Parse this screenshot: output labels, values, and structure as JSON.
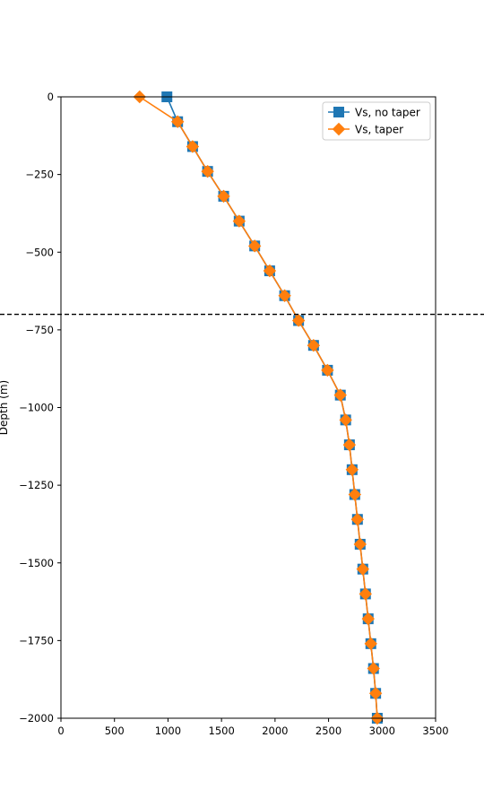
{
  "chart_data": {
    "type": "line",
    "ylabel": "Depth (m)",
    "xlabel": "",
    "title": "",
    "xlim": [
      0,
      3500
    ],
    "ylim": [
      -2000,
      0
    ],
    "x_ticks": [
      0,
      500,
      1000,
      1500,
      2000,
      2500,
      3000,
      3500
    ],
    "y_ticks": [
      0,
      -250,
      -500,
      -750,
      -1000,
      -1250,
      -1500,
      -1750,
      -2000
    ],
    "grid": false,
    "legend_position": "top-right",
    "hline": {
      "y": -700,
      "style": "dashed",
      "color": "#000000"
    },
    "series": [
      {
        "name": "Vs, no taper",
        "color": "#1f77b4",
        "marker": "square",
        "points": [
          [
            990,
            0
          ],
          [
            1090,
            -80
          ],
          [
            1230,
            -160
          ],
          [
            1370,
            -240
          ],
          [
            1520,
            -320
          ],
          [
            1665,
            -400
          ],
          [
            1810,
            -480
          ],
          [
            1950,
            -560
          ],
          [
            2090,
            -640
          ],
          [
            2220,
            -720
          ],
          [
            2360,
            -800
          ],
          [
            2490,
            -880
          ],
          [
            2610,
            -960
          ],
          [
            2660,
            -1040
          ],
          [
            2695,
            -1120
          ],
          [
            2720,
            -1200
          ],
          [
            2745,
            -1280
          ],
          [
            2770,
            -1360
          ],
          [
            2795,
            -1440
          ],
          [
            2820,
            -1520
          ],
          [
            2845,
            -1600
          ],
          [
            2870,
            -1680
          ],
          [
            2895,
            -1760
          ],
          [
            2920,
            -1840
          ],
          [
            2940,
            -1920
          ],
          [
            2955,
            -2000
          ]
        ]
      },
      {
        "name": "Vs, taper",
        "color": "#ff7f0e",
        "marker": "diamond",
        "points": [
          [
            735,
            0
          ],
          [
            1090,
            -80
          ],
          [
            1230,
            -160
          ],
          [
            1370,
            -240
          ],
          [
            1520,
            -320
          ],
          [
            1665,
            -400
          ],
          [
            1810,
            -480
          ],
          [
            1950,
            -560
          ],
          [
            2090,
            -640
          ],
          [
            2220,
            -720
          ],
          [
            2360,
            -800
          ],
          [
            2490,
            -880
          ],
          [
            2610,
            -960
          ],
          [
            2660,
            -1040
          ],
          [
            2695,
            -1120
          ],
          [
            2720,
            -1200
          ],
          [
            2745,
            -1280
          ],
          [
            2770,
            -1360
          ],
          [
            2795,
            -1440
          ],
          [
            2820,
            -1520
          ],
          [
            2845,
            -1600
          ],
          [
            2870,
            -1680
          ],
          [
            2895,
            -1760
          ],
          [
            2920,
            -1840
          ],
          [
            2940,
            -1920
          ],
          [
            2955,
            -2000
          ]
        ]
      }
    ]
  }
}
